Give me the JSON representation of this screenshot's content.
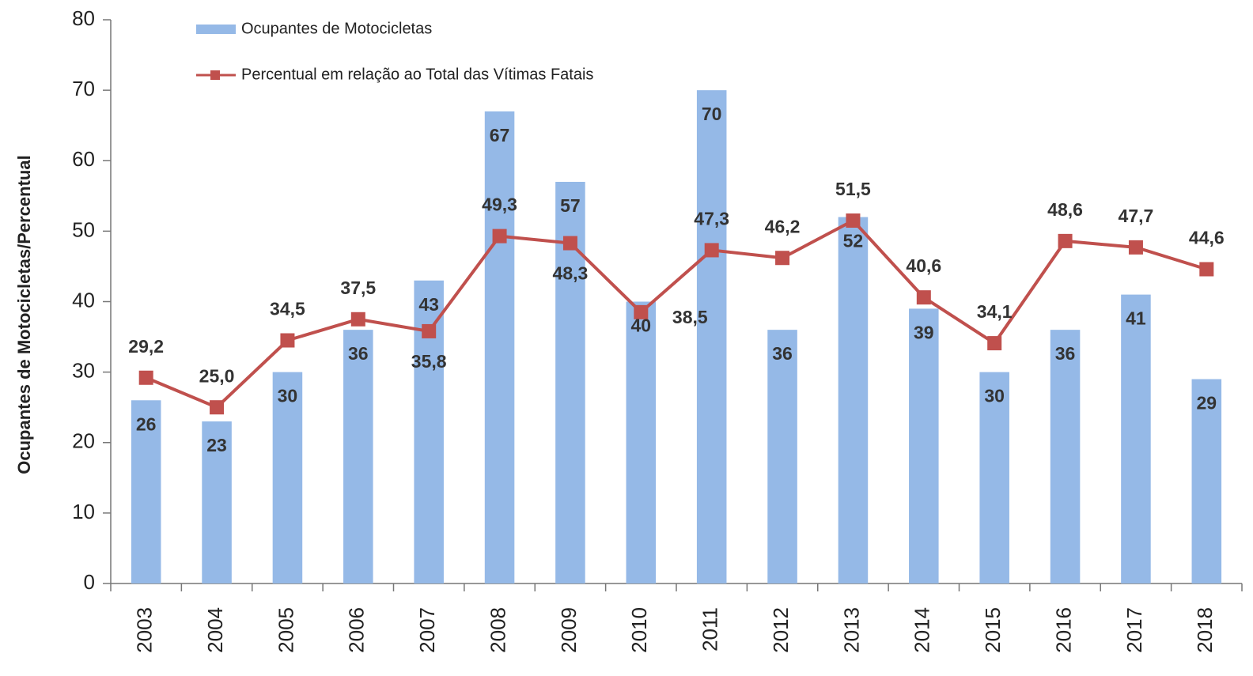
{
  "chart_data": {
    "type": "combo",
    "y_axis_label": "Ocupantes de Motocicletas/Percentual",
    "categories": [
      "2003",
      "2004",
      "2005",
      "2006",
      "2007",
      "2008",
      "2009",
      "2010",
      "2011",
      "2012",
      "2013",
      "2014",
      "2015",
      "2016",
      "2017",
      "2018"
    ],
    "series": [
      {
        "name": "Ocupantes de Motocicletas",
        "type": "bar",
        "color": "#95b9e7",
        "values": [
          26,
          23,
          30,
          36,
          43,
          67,
          57,
          40,
          70,
          36,
          52,
          39,
          30,
          36,
          41,
          29
        ]
      },
      {
        "name": "Percentual em relação ao Total das Vítimas Fatais",
        "type": "line",
        "color": "#c0504d",
        "values": [
          29.2,
          25.0,
          34.5,
          37.5,
          35.8,
          49.3,
          48.3,
          38.5,
          47.3,
          46.2,
          51.5,
          40.6,
          34.1,
          48.6,
          47.7,
          44.6
        ],
        "value_labels": [
          "29,2",
          "25,0",
          "34,5",
          "37,5",
          "35,8",
          "49,3",
          "48,3",
          "38,5",
          "47,3",
          "46,2",
          "51,5",
          "40,6",
          "34,1",
          "48,6",
          "47,7",
          "44,6"
        ]
      }
    ],
    "ylim": [
      0,
      80
    ],
    "yticks": [
      0,
      10,
      20,
      30,
      40,
      50,
      60,
      70,
      80
    ],
    "grid": false,
    "legend": "top-left"
  }
}
